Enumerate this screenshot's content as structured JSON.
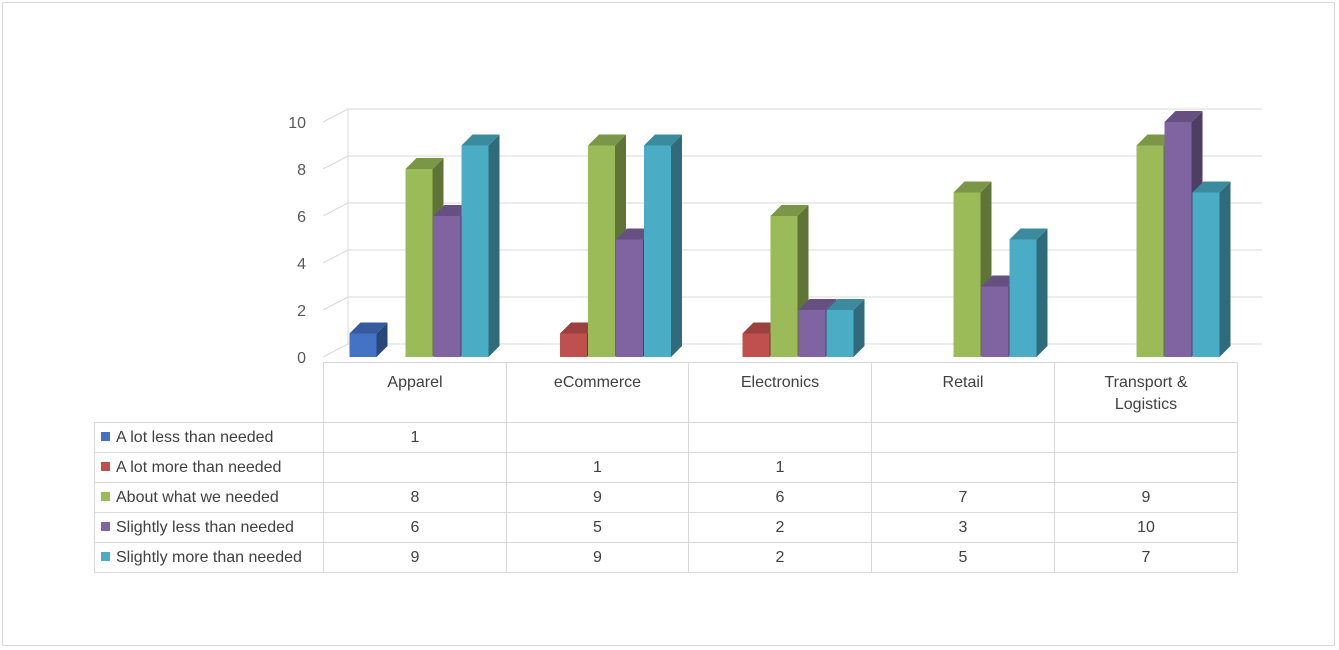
{
  "chart_data": {
    "type": "bar",
    "categories": [
      "Apparel",
      "eCommerce",
      "Electronics",
      "Retail",
      "Transport &\nLogistics"
    ],
    "series": [
      {
        "name": "A lot less than needed",
        "values": [
          1,
          null,
          null,
          null,
          null
        ],
        "color": "#4472c4"
      },
      {
        "name": "A lot more than needed",
        "values": [
          null,
          1,
          1,
          null,
          null
        ],
        "color": "#c0504d"
      },
      {
        "name": "About what we needed",
        "values": [
          8,
          9,
          6,
          7,
          9
        ],
        "color": "#9bbb59"
      },
      {
        "name": "Slightly less than needed",
        "values": [
          6,
          5,
          2,
          3,
          10
        ],
        "color": "#8064a2"
      },
      {
        "name": "Slightly more than needed",
        "values": [
          9,
          9,
          2,
          5,
          7
        ],
        "color": "#4bacc6"
      }
    ],
    "y_ticks": [
      0,
      2,
      4,
      6,
      8,
      10
    ],
    "ylim": [
      0,
      10
    ],
    "grid": true,
    "legend": "data-table",
    "style": "3d-clustered-column"
  }
}
